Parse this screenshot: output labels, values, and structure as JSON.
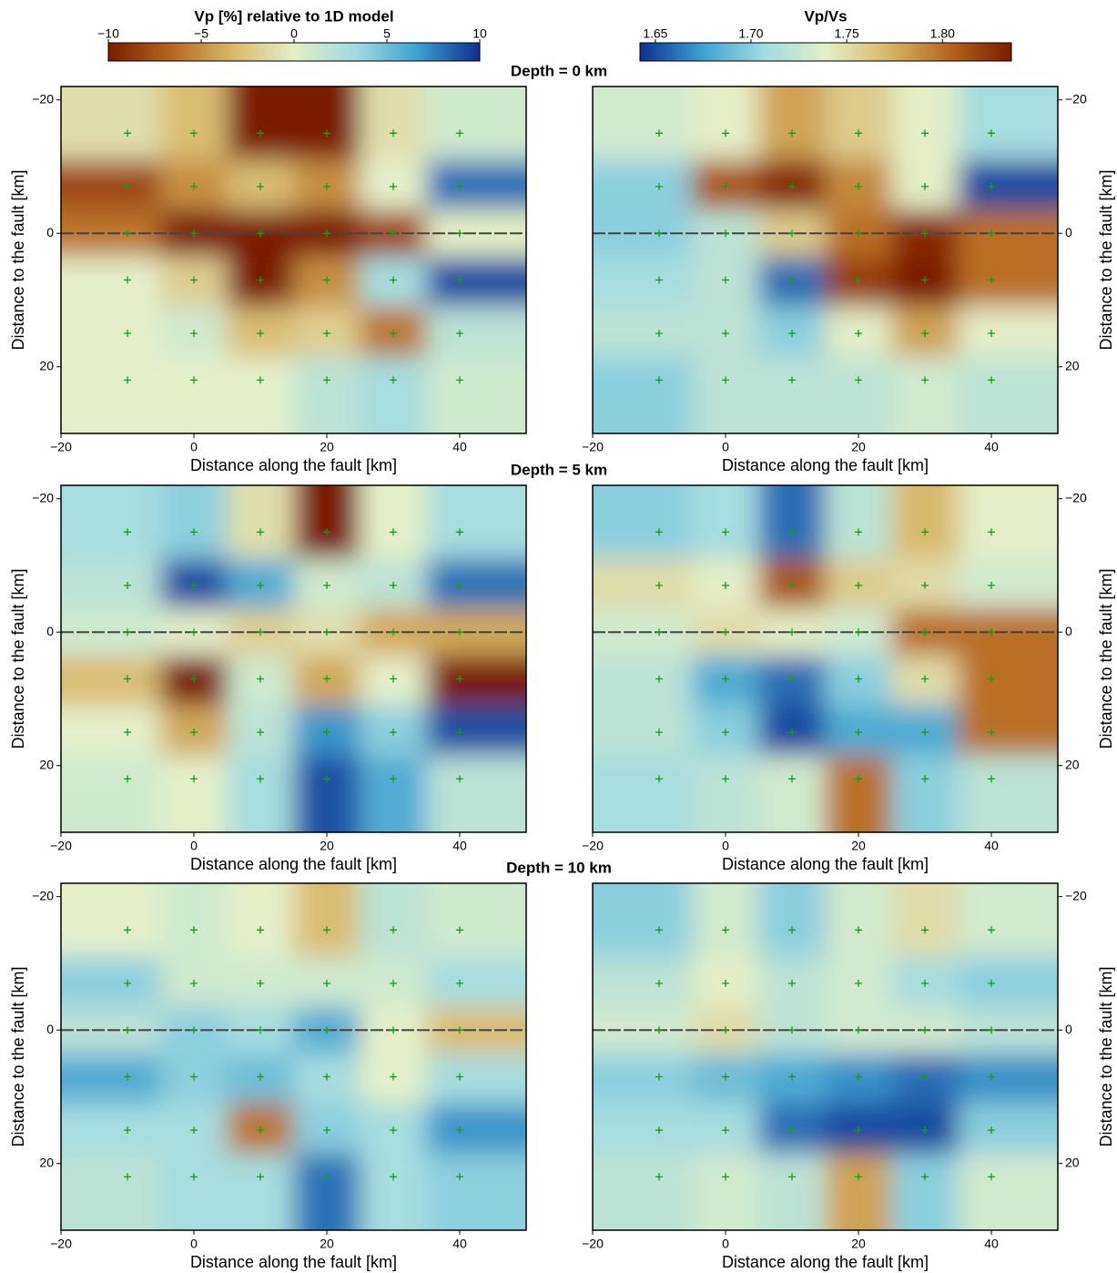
{
  "colorbars": [
    {
      "title": "Vp [%] relative to 1D model",
      "lim": [
        -10,
        10
      ],
      "ticks": [
        {
          "value": -10,
          "label": "−10"
        },
        {
          "value": -5,
          "label": "−5"
        },
        0,
        5,
        10
      ],
      "colors": [
        "#7a1c00",
        "#b5661e",
        "#d8b86a",
        "#e4efc8",
        "#9fdbe0",
        "#3f9fd0",
        "#0d2f8f"
      ]
    },
    {
      "title": "Vp/Vs",
      "lim": [
        1.642,
        1.836
      ],
      "ticks": [
        1.65,
        {
          "value": 1.7,
          "label": "1.70"
        },
        1.75,
        {
          "value": 1.8,
          "label": "1.80"
        }
      ],
      "colors": [
        "#0d2f8f",
        "#3f9fd0",
        "#9fdbe0",
        "#e4efc8",
        "#d8b86a",
        "#b5661e",
        "#7a1c00"
      ]
    }
  ],
  "depth_titles": [
    "Depth = 0 km",
    "Depth = 5 km",
    "Depth = 10 km"
  ],
  "chart_data": [
    {
      "type": "heatmap",
      "colorbar": 0,
      "x": [
        -10,
        0,
        10,
        20,
        30,
        40
      ],
      "y": [
        -15,
        -7,
        0,
        7,
        15,
        22
      ],
      "values": [
        [
          -1,
          -3,
          -10,
          -10,
          -1,
          1
        ],
        [
          -8,
          -5,
          -3,
          -5,
          0,
          8
        ],
        [
          -6,
          -10,
          -10,
          -10,
          -8,
          0
        ],
        [
          0,
          -2,
          -10,
          -5,
          3,
          9
        ],
        [
          0,
          1,
          -3,
          -2,
          -6,
          2
        ],
        [
          0,
          0,
          0,
          2,
          3,
          1
        ]
      ],
      "xlim": [
        -20,
        50
      ],
      "ylim": [
        -22,
        30
      ],
      "xticks": [
        {
          "value": -20,
          "label": "−20"
        },
        0,
        20,
        40
      ],
      "yticks": [
        {
          "value": -20,
          "label": "−20"
        },
        0,
        20
      ],
      "xlabel": "Distance along the fault [km]",
      "ylabel": "Distance to the fault [km]",
      "ylabel_side": "left"
    },
    {
      "type": "heatmap",
      "colorbar": 1,
      "x": [
        -10,
        0,
        10,
        20,
        30,
        40
      ],
      "y": [
        -15,
        -7,
        0,
        7,
        15,
        22
      ],
      "values": [
        [
          1.73,
          1.74,
          1.78,
          1.76,
          1.74,
          1.71
        ],
        [
          1.7,
          1.81,
          1.83,
          1.79,
          1.74,
          1.65
        ],
        [
          1.7,
          1.72,
          1.76,
          1.8,
          1.83,
          1.8
        ],
        [
          1.71,
          1.72,
          1.66,
          1.82,
          1.84,
          1.8
        ],
        [
          1.72,
          1.72,
          1.7,
          1.74,
          1.78,
          1.74
        ],
        [
          1.7,
          1.72,
          1.72,
          1.72,
          1.73,
          1.72
        ]
      ],
      "xlim": [
        -20,
        50
      ],
      "ylim": [
        -22,
        30
      ],
      "xticks": [
        {
          "value": -20,
          "label": "−20"
        },
        0,
        20,
        40
      ],
      "yticks": [
        {
          "value": -20,
          "label": "−20"
        },
        0,
        20
      ],
      "xlabel": "Distance along the fault [km]",
      "ylabel": "Distance to the fault [km]",
      "ylabel_side": "right"
    },
    {
      "type": "heatmap",
      "colorbar": 0,
      "x": [
        -10,
        0,
        10,
        20,
        30,
        40
      ],
      "y": [
        -15,
        -7,
        0,
        7,
        15,
        22
      ],
      "values": [
        [
          3,
          4,
          -1,
          -10,
          0,
          3
        ],
        [
          2,
          9,
          6,
          1,
          2,
          8
        ],
        [
          1,
          0,
          -2,
          -1,
          -4,
          -4
        ],
        [
          -3,
          -10,
          1,
          -4,
          0,
          -10
        ],
        [
          0,
          -4,
          2,
          7,
          4,
          9
        ],
        [
          1,
          0,
          3,
          9,
          6,
          2
        ]
      ],
      "xlim": [
        -20,
        50
      ],
      "ylim": [
        -22,
        30
      ],
      "xticks": [
        {
          "value": -20,
          "label": "−20"
        },
        0,
        20,
        40
      ],
      "yticks": [
        {
          "value": -20,
          "label": "−20"
        },
        0,
        20
      ],
      "xlabel": "Distance along the fault [km]",
      "ylabel": "Distance to the fault [km]",
      "ylabel_side": "left"
    },
    {
      "type": "heatmap",
      "colorbar": 1,
      "x": [
        -10,
        0,
        10,
        20,
        30,
        40
      ],
      "y": [
        -15,
        -7,
        0,
        7,
        15,
        22
      ],
      "values": [
        [
          1.7,
          1.71,
          1.66,
          1.72,
          1.77,
          1.74
        ],
        [
          1.75,
          1.74,
          1.81,
          1.76,
          1.75,
          1.73
        ],
        [
          1.73,
          1.75,
          1.74,
          1.73,
          1.8,
          1.8
        ],
        [
          1.72,
          1.68,
          1.66,
          1.7,
          1.75,
          1.8
        ],
        [
          1.72,
          1.7,
          1.65,
          1.68,
          1.68,
          1.8
        ],
        [
          1.71,
          1.72,
          1.73,
          1.8,
          1.7,
          1.72
        ]
      ],
      "xlim": [
        -20,
        50
      ],
      "ylim": [
        -22,
        30
      ],
      "xticks": [
        {
          "value": -20,
          "label": "−20"
        },
        0,
        20,
        40
      ],
      "yticks": [
        {
          "value": -20,
          "label": "−20"
        },
        0,
        20
      ],
      "xlabel": "Distance along the fault [km]",
      "ylabel": "Distance to the fault [km]",
      "ylabel_side": "right"
    },
    {
      "type": "heatmap",
      "colorbar": 0,
      "x": [
        -10,
        0,
        10,
        20,
        30,
        40
      ],
      "y": [
        -15,
        -7,
        0,
        7,
        15,
        22
      ],
      "values": [
        [
          0,
          1,
          0,
          -3,
          2,
          1
        ],
        [
          4,
          1,
          1,
          1,
          1,
          3
        ],
        [
          2,
          4,
          3,
          6,
          0,
          -3
        ],
        [
          6,
          4,
          5,
          3,
          0,
          3
        ],
        [
          3,
          3,
          -6,
          4,
          3,
          7
        ],
        [
          2,
          3,
          3,
          8,
          3,
          4
        ]
      ],
      "xlim": [
        -20,
        50
      ],
      "ylim": [
        -22,
        30
      ],
      "xticks": [
        {
          "value": -20,
          "label": "−20"
        },
        0,
        20,
        40
      ],
      "yticks": [
        {
          "value": -20,
          "label": "−20"
        },
        0,
        20
      ],
      "xlabel": "Distance along the fault [km]",
      "ylabel": "Distance to the fault [km]",
      "ylabel_side": "left"
    },
    {
      "type": "heatmap",
      "colorbar": 1,
      "x": [
        -10,
        0,
        10,
        20,
        30,
        40
      ],
      "y": [
        -15,
        -7,
        0,
        7,
        15,
        22
      ],
      "values": [
        [
          1.7,
          1.73,
          1.7,
          1.73,
          1.75,
          1.73
        ],
        [
          1.72,
          1.74,
          1.72,
          1.73,
          1.71,
          1.7
        ],
        [
          1.73,
          1.75,
          1.72,
          1.73,
          1.73,
          1.72
        ],
        [
          1.7,
          1.69,
          1.68,
          1.67,
          1.66,
          1.67
        ],
        [
          1.71,
          1.71,
          1.66,
          1.65,
          1.65,
          1.7
        ],
        [
          1.72,
          1.73,
          1.72,
          1.78,
          1.7,
          1.73
        ]
      ],
      "xlim": [
        -20,
        50
      ],
      "ylim": [
        -22,
        30
      ],
      "xticks": [
        {
          "value": -20,
          "label": "−20"
        },
        0,
        20,
        40
      ],
      "yticks": [
        {
          "value": -20,
          "label": "−20"
        },
        0,
        20
      ],
      "xlabel": "Distance along the fault [km]",
      "ylabel": "Distance to the fault [km]",
      "ylabel_side": "right"
    }
  ]
}
